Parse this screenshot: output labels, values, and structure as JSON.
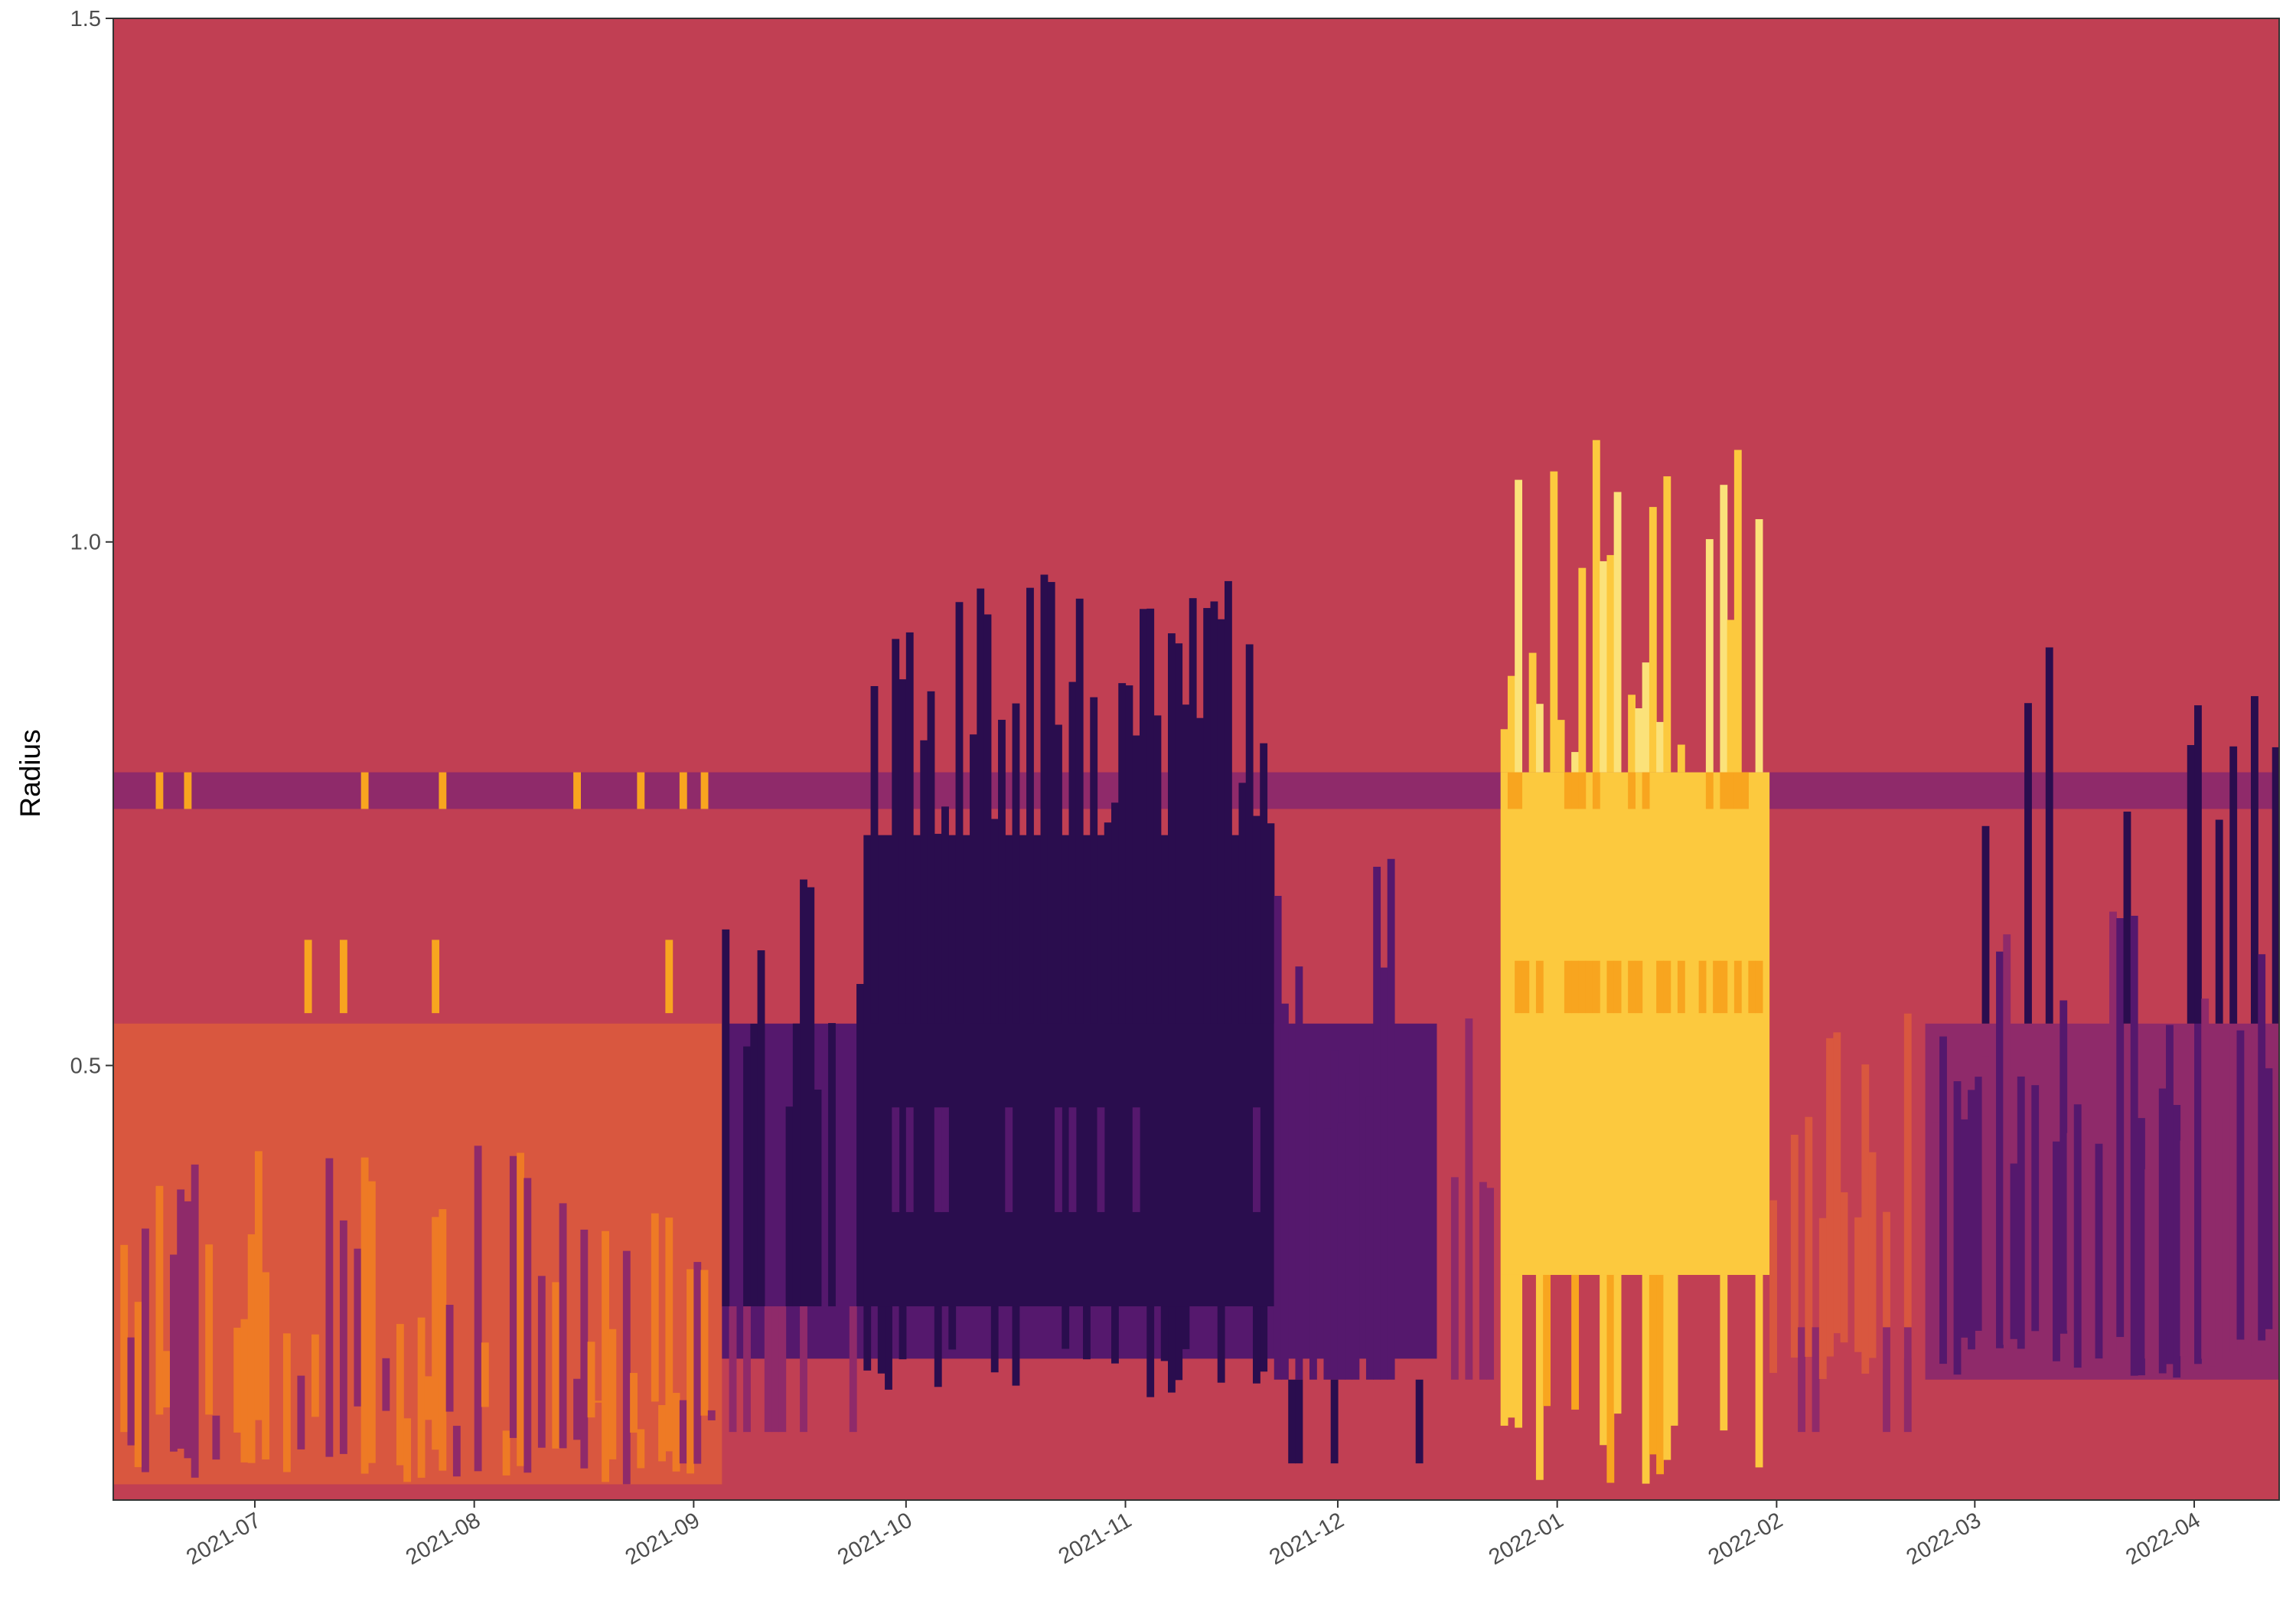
{
  "chart_data": {
    "type": "heatmap",
    "title": "",
    "xlabel": "",
    "ylabel": "Radius",
    "x_axis": {
      "type": "date",
      "range": [
        "2021-06-11",
        "2022-04-13"
      ],
      "ticks": [
        "2021-07",
        "2021-08",
        "2021-09",
        "2021-10",
        "2021-11",
        "2021-12",
        "2022-01",
        "2022-02",
        "2022-03",
        "2022-04"
      ],
      "tick_dates": [
        "2021-07-01",
        "2021-08-01",
        "2021-09-01",
        "2021-10-01",
        "2021-11-01",
        "2021-12-01",
        "2022-01-01",
        "2022-02-01",
        "2022-03-01",
        "2022-04-01"
      ]
    },
    "y_axis": {
      "range": [
        0.085,
        1.5
      ],
      "ticks": [
        0.5,
        1.0,
        1.5
      ],
      "tick_labels": [
        "0.5",
        "1.0",
        "1.5"
      ]
    },
    "palette": "inferno",
    "colors": {
      "background_fill": "#c13f53",
      "dark": "#2a0d4e",
      "purple": "#55186d",
      "magenta": "#8f2a6a",
      "red_orange": "#d9573f",
      "orange": "#ee7a25",
      "amber": "#f8a51f",
      "yellow": "#fcc93e",
      "pale_yellow": "#fbe27a"
    },
    "grid": false,
    "legend": "none",
    "regions": [
      {
        "label": "baseline fill",
        "x": [
          "2021-06-11",
          "2022-04-13"
        ],
        "y": [
          0.085,
          1.5
        ],
        "color": "background_fill"
      },
      {
        "label": "band r=0.76",
        "x": [
          "2021-06-11",
          "2022-04-13"
        ],
        "y": [
          0.745,
          0.78
        ],
        "color": "magenta"
      },
      {
        "label": "low-radius summer orange",
        "x": [
          "2021-06-11",
          "2021-09-05"
        ],
        "y": [
          0.1,
          0.54
        ],
        "color": "red_orange"
      },
      {
        "label": "autumn purple band",
        "x": [
          "2021-09-05",
          "2021-12-15"
        ],
        "y": [
          0.22,
          0.54
        ],
        "color": "purple"
      },
      {
        "label": "autumn dark core",
        "x": [
          "2021-09-25",
          "2021-11-22"
        ],
        "y": [
          0.27,
          0.72
        ],
        "color": "dark"
      },
      {
        "label": "winter bright core",
        "x": [
          "2021-12-24",
          "2022-01-31"
        ],
        "y": [
          0.3,
          0.78
        ],
        "color": "yellow"
      },
      {
        "label": "spring purple band",
        "x": [
          "2022-02-22",
          "2022-04-13"
        ],
        "y": [
          0.2,
          0.54
        ],
        "color": "magenta"
      }
    ]
  }
}
